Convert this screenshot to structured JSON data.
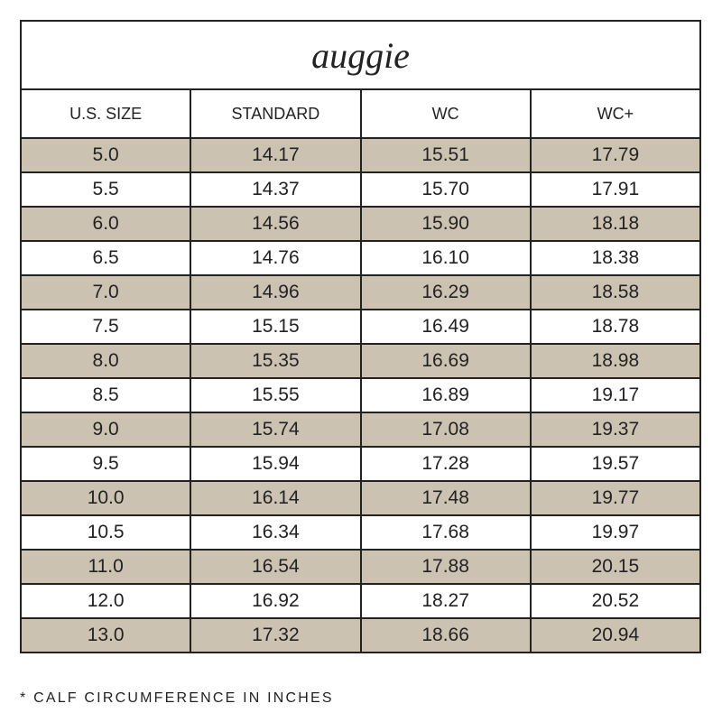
{
  "title": "auggie",
  "table": {
    "header": [
      "U.S. SIZE",
      "STANDARD",
      "WC",
      "WC+"
    ],
    "rows": [
      [
        "5.0",
        "14.17",
        "15.51",
        "17.79"
      ],
      [
        "5.5",
        "14.37",
        "15.70",
        "17.91"
      ],
      [
        "6.0",
        "14.56",
        "15.90",
        "18.18"
      ],
      [
        "6.5",
        "14.76",
        "16.10",
        "18.38"
      ],
      [
        "7.0",
        "14.96",
        "16.29",
        "18.58"
      ],
      [
        "7.5",
        "15.15",
        "16.49",
        "18.78"
      ],
      [
        "8.0",
        "15.35",
        "16.69",
        "18.98"
      ],
      [
        "8.5",
        "15.55",
        "16.89",
        "19.17"
      ],
      [
        "9.0",
        "15.74",
        "17.08",
        "19.37"
      ],
      [
        "9.5",
        "15.94",
        "17.28",
        "19.57"
      ],
      [
        "10.0",
        "16.14",
        "17.48",
        "19.77"
      ],
      [
        "10.5",
        "16.34",
        "17.68",
        "19.97"
      ],
      [
        "11.0",
        "16.54",
        "17.88",
        "20.15"
      ],
      [
        "12.0",
        "16.92",
        "18.27",
        "20.52"
      ],
      [
        "13.0",
        "17.32",
        "18.66",
        "20.94"
      ]
    ]
  },
  "footnote": "* CALF CIRCUMFERENCE IN INCHES"
}
